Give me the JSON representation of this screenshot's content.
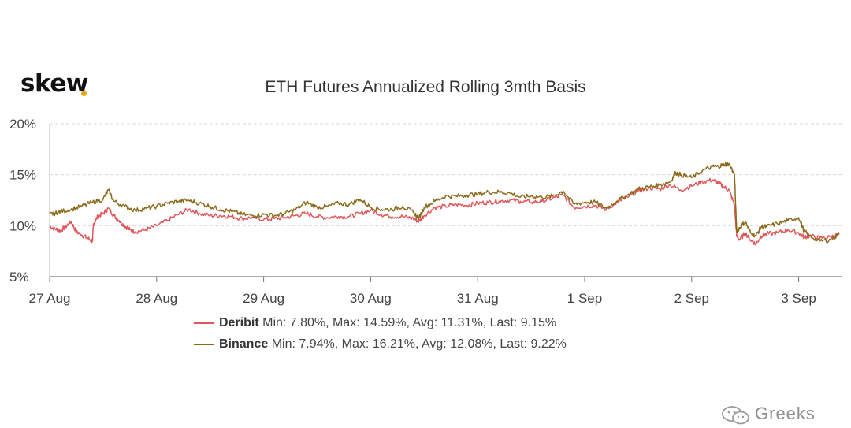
{
  "brand": {
    "logo_text": "skew",
    "dot_color": "#e8a717"
  },
  "watermark": {
    "text": "Greeks",
    "icon": "wechat-icon"
  },
  "chart_data": {
    "type": "line",
    "title": "ETH Futures Annualized Rolling 3mth Basis",
    "xlabel": "",
    "ylabel": "",
    "x_ticks": [
      "27 Aug",
      "28 Aug",
      "29 Aug",
      "30 Aug",
      "31 Aug",
      "1 Sep",
      "2 Sep",
      "3 Sep"
    ],
    "x_range_days": [
      0,
      7.4
    ],
    "y_ticks": [
      "5%",
      "10%",
      "15%",
      "20%"
    ],
    "ylim": [
      5,
      20
    ],
    "grid": "horizontal dashed",
    "legend_position": "bottom-center",
    "series": [
      {
        "name": "Deribit",
        "color": "#e0575b",
        "stats_text": "Min: 7.80%, Max: 14.59%, Avg: 11.31%, Last: 9.15%",
        "points": [
          [
            0.0,
            9.9
          ],
          [
            0.05,
            9.7
          ],
          [
            0.1,
            9.5
          ],
          [
            0.15,
            9.9
          ],
          [
            0.2,
            10.4
          ],
          [
            0.25,
            9.4
          ],
          [
            0.3,
            9.1
          ],
          [
            0.35,
            8.8
          ],
          [
            0.4,
            8.5
          ],
          [
            0.41,
            10.2
          ],
          [
            0.45,
            10.9
          ],
          [
            0.5,
            11.2
          ],
          [
            0.55,
            11.7
          ],
          [
            0.6,
            11.0
          ],
          [
            0.65,
            10.5
          ],
          [
            0.7,
            10.0
          ],
          [
            0.75,
            9.6
          ],
          [
            0.8,
            9.4
          ],
          [
            0.9,
            9.6
          ],
          [
            1.0,
            10.0
          ],
          [
            1.1,
            10.5
          ],
          [
            1.2,
            11.1
          ],
          [
            1.3,
            11.6
          ],
          [
            1.4,
            11.2
          ],
          [
            1.5,
            11.0
          ],
          [
            1.6,
            11.0
          ],
          [
            1.7,
            10.9
          ],
          [
            1.8,
            10.7
          ],
          [
            1.9,
            10.8
          ],
          [
            2.0,
            10.6
          ],
          [
            2.1,
            10.7
          ],
          [
            2.2,
            10.8
          ],
          [
            2.3,
            11.0
          ],
          [
            2.4,
            11.2
          ],
          [
            2.5,
            10.9
          ],
          [
            2.6,
            10.8
          ],
          [
            2.7,
            10.9
          ],
          [
            2.8,
            10.9
          ],
          [
            2.9,
            11.2
          ],
          [
            3.0,
            11.5
          ],
          [
            3.1,
            11.1
          ],
          [
            3.2,
            10.9
          ],
          [
            3.3,
            10.9
          ],
          [
            3.4,
            10.7
          ],
          [
            3.45,
            10.4
          ],
          [
            3.5,
            11.0
          ],
          [
            3.6,
            11.8
          ],
          [
            3.7,
            11.9
          ],
          [
            3.8,
            12.1
          ],
          [
            3.9,
            12.0
          ],
          [
            4.0,
            12.2
          ],
          [
            4.1,
            12.3
          ],
          [
            4.2,
            12.4
          ],
          [
            4.3,
            12.5
          ],
          [
            4.4,
            12.4
          ],
          [
            4.5,
            12.3
          ],
          [
            4.6,
            12.4
          ],
          [
            4.7,
            12.7
          ],
          [
            4.8,
            13.0
          ],
          [
            4.9,
            11.8
          ],
          [
            5.0,
            11.9
          ],
          [
            5.1,
            12.0
          ],
          [
            5.2,
            11.6
          ],
          [
            5.3,
            12.3
          ],
          [
            5.4,
            12.8
          ],
          [
            5.5,
            13.4
          ],
          [
            5.6,
            13.7
          ],
          [
            5.7,
            13.6
          ],
          [
            5.8,
            14.0
          ],
          [
            5.9,
            13.5
          ],
          [
            6.0,
            13.9
          ],
          [
            6.1,
            14.3
          ],
          [
            6.2,
            14.5
          ],
          [
            6.25,
            14.2
          ],
          [
            6.3,
            13.8
          ],
          [
            6.35,
            13.5
          ],
          [
            6.4,
            12.0
          ],
          [
            6.42,
            9.0
          ],
          [
            6.45,
            8.6
          ],
          [
            6.5,
            9.3
          ],
          [
            6.55,
            8.6
          ],
          [
            6.6,
            8.2
          ],
          [
            6.65,
            9.0
          ],
          [
            6.7,
            9.2
          ],
          [
            6.8,
            9.3
          ],
          [
            6.9,
            9.6
          ],
          [
            7.0,
            9.3
          ],
          [
            7.05,
            8.9
          ],
          [
            7.1,
            9.0
          ],
          [
            7.2,
            8.8
          ],
          [
            7.3,
            8.9
          ],
          [
            7.38,
            9.15
          ]
        ]
      },
      {
        "name": "Binance",
        "color": "#8b6a1a",
        "stats_text": "Min: 7.94%, Max: 16.21%, Avg: 12.08%, Last: 9.22%",
        "points": [
          [
            0.0,
            11.1
          ],
          [
            0.05,
            11.2
          ],
          [
            0.1,
            11.4
          ],
          [
            0.2,
            11.6
          ],
          [
            0.3,
            11.9
          ],
          [
            0.4,
            12.3
          ],
          [
            0.5,
            12.6
          ],
          [
            0.55,
            13.5
          ],
          [
            0.6,
            12.4
          ],
          [
            0.7,
            11.9
          ],
          [
            0.8,
            11.5
          ],
          [
            0.9,
            11.7
          ],
          [
            1.0,
            11.9
          ],
          [
            1.1,
            12.2
          ],
          [
            1.2,
            12.4
          ],
          [
            1.3,
            12.5
          ],
          [
            1.4,
            12.2
          ],
          [
            1.5,
            11.9
          ],
          [
            1.6,
            11.6
          ],
          [
            1.7,
            11.4
          ],
          [
            1.8,
            11.1
          ],
          [
            1.9,
            11.0
          ],
          [
            2.0,
            11.1
          ],
          [
            2.1,
            11.0
          ],
          [
            2.2,
            11.2
          ],
          [
            2.3,
            11.6
          ],
          [
            2.4,
            12.3
          ],
          [
            2.5,
            11.8
          ],
          [
            2.6,
            11.9
          ],
          [
            2.7,
            12.2
          ],
          [
            2.8,
            12.1
          ],
          [
            2.9,
            12.6
          ],
          [
            3.0,
            11.8
          ],
          [
            3.1,
            11.6
          ],
          [
            3.2,
            11.6
          ],
          [
            3.3,
            11.9
          ],
          [
            3.4,
            11.3
          ],
          [
            3.45,
            10.7
          ],
          [
            3.5,
            11.8
          ],
          [
            3.6,
            12.4
          ],
          [
            3.7,
            12.9
          ],
          [
            3.8,
            12.9
          ],
          [
            3.9,
            13.0
          ],
          [
            4.0,
            13.1
          ],
          [
            4.1,
            13.3
          ],
          [
            4.2,
            13.3
          ],
          [
            4.3,
            13.2
          ],
          [
            4.4,
            12.8
          ],
          [
            4.5,
            12.9
          ],
          [
            4.6,
            12.8
          ],
          [
            4.7,
            12.9
          ],
          [
            4.8,
            13.4
          ],
          [
            4.9,
            12.1
          ],
          [
            5.0,
            12.3
          ],
          [
            5.1,
            12.3
          ],
          [
            5.2,
            11.7
          ],
          [
            5.3,
            12.4
          ],
          [
            5.4,
            13.0
          ],
          [
            5.5,
            13.6
          ],
          [
            5.6,
            13.8
          ],
          [
            5.7,
            14.0
          ],
          [
            5.8,
            14.3
          ],
          [
            5.85,
            15.2
          ],
          [
            5.9,
            15.0
          ],
          [
            6.0,
            14.7
          ],
          [
            6.1,
            15.4
          ],
          [
            6.2,
            15.8
          ],
          [
            6.25,
            15.8
          ],
          [
            6.3,
            16.0
          ],
          [
            6.35,
            16.1
          ],
          [
            6.4,
            15.0
          ],
          [
            6.42,
            9.5
          ],
          [
            6.45,
            9.8
          ],
          [
            6.5,
            10.4
          ],
          [
            6.55,
            9.3
          ],
          [
            6.6,
            9.0
          ],
          [
            6.65,
            9.9
          ],
          [
            6.7,
            9.9
          ],
          [
            6.8,
            10.2
          ],
          [
            6.9,
            10.5
          ],
          [
            7.0,
            10.8
          ],
          [
            7.05,
            9.5
          ],
          [
            7.1,
            9.0
          ],
          [
            7.2,
            8.5
          ],
          [
            7.3,
            8.6
          ],
          [
            7.38,
            9.22
          ]
        ]
      }
    ]
  }
}
